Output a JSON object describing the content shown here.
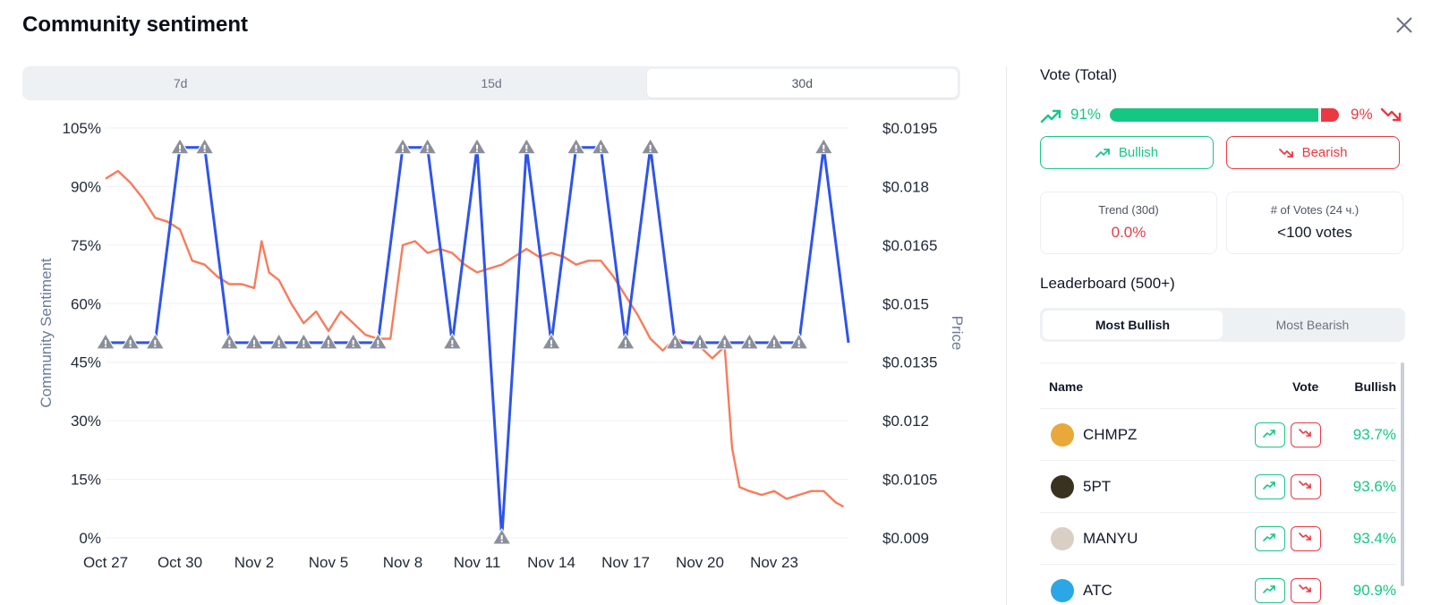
{
  "modal": {
    "title": "Community sentiment"
  },
  "range_tabs": [
    {
      "label": "7d",
      "active": false
    },
    {
      "label": "15d",
      "active": false
    },
    {
      "label": "30d",
      "active": true
    }
  ],
  "chart_data": {
    "type": "line",
    "ylabel": "Community Sentiment",
    "y2label": "Price",
    "x_ticks": [
      "Oct 27",
      "Oct 30",
      "Nov 2",
      "Nov 5",
      "Nov 8",
      "Nov 11",
      "Nov 14",
      "Nov 17",
      "Nov 20",
      "Nov 23"
    ],
    "y_ticks": [
      "105%",
      "90%",
      "75%",
      "60%",
      "45%",
      "30%",
      "15%",
      "0%"
    ],
    "y2_ticks": [
      "$0.0195",
      "$0.018",
      "$0.0165",
      "$0.015",
      "$0.0135",
      "$0.012",
      "$0.0105",
      "$0.009"
    ],
    "ylim": [
      0,
      105
    ],
    "y2lim": [
      0.009,
      0.0195
    ],
    "series": [
      {
        "kind": "sentiment",
        "color": "#2f54eb",
        "x_day": [
          0,
          1,
          2,
          3,
          4,
          5,
          6,
          7,
          8,
          9,
          10,
          11,
          12,
          13,
          14,
          15,
          16,
          17,
          18,
          19,
          20,
          21,
          22,
          23,
          24,
          25,
          26,
          27,
          28,
          29,
          30
        ],
        "values": [
          50,
          50,
          50,
          100,
          100,
          50,
          50,
          50,
          50,
          50,
          50,
          50,
          100,
          100,
          50,
          100,
          0,
          100,
          50,
          100,
          100,
          50,
          100,
          50,
          50,
          50,
          50,
          50,
          50,
          100,
          50
        ]
      },
      {
        "kind": "price",
        "color": "#f77c5c",
        "x_day": [
          0,
          0.5,
          1,
          1.5,
          2,
          2.5,
          3,
          3.5,
          4,
          4.5,
          5,
          5.5,
          6,
          6.3,
          6.6,
          7,
          7.5,
          8,
          8.5,
          9,
          9.5,
          10,
          10.5,
          11,
          11.5,
          12,
          12.5,
          13,
          13.5,
          14,
          14.5,
          15,
          15.5,
          16,
          16.5,
          17,
          17.5,
          18,
          18.5,
          19,
          19.5,
          20,
          20.5,
          21,
          21.5,
          22,
          22.5,
          23,
          23.5,
          24,
          24.5,
          25,
          25.3,
          25.6,
          26,
          26.5,
          27,
          27.5,
          28,
          28.5,
          29,
          29.5,
          29.8
        ],
        "values": [
          0.0182,
          0.0184,
          0.0181,
          0.0177,
          0.0172,
          0.0171,
          0.0169,
          0.0161,
          0.016,
          0.0157,
          0.0155,
          0.0155,
          0.0154,
          0.0166,
          0.0158,
          0.0156,
          0.015,
          0.0145,
          0.0148,
          0.0143,
          0.0148,
          0.0145,
          0.0142,
          0.0141,
          0.0141,
          0.0165,
          0.0166,
          0.0163,
          0.0164,
          0.0163,
          0.016,
          0.0158,
          0.0159,
          0.016,
          0.0162,
          0.0164,
          0.0162,
          0.0163,
          0.0162,
          0.016,
          0.0161,
          0.0161,
          0.0157,
          0.0152,
          0.0147,
          0.0141,
          0.0138,
          0.0141,
          0.014,
          0.0139,
          0.0136,
          0.0139,
          0.0113,
          0.0103,
          0.0102,
          0.0101,
          0.0102,
          0.01,
          0.0101,
          0.0102,
          0.0102,
          0.0099,
          0.0098
        ]
      }
    ]
  },
  "vote_total": {
    "title": "Vote (Total)",
    "bullish_pct": "91%",
    "bearish_pct": "9%",
    "bullish_fraction": 0.91,
    "bullish_label": "Bullish",
    "bearish_label": "Bearish"
  },
  "stats": [
    {
      "label": "Trend (30d)",
      "value": "0.0%",
      "color": "#ea3943"
    },
    {
      "label": "# of Votes (24 ч.)",
      "value": "<100 votes",
      "color": "#111827"
    }
  ],
  "leaderboard": {
    "title": "Leaderboard (500+)",
    "tabs": [
      {
        "label": "Most Bullish",
        "active": true
      },
      {
        "label": "Most Bearish",
        "active": false
      }
    ],
    "columns": {
      "name": "Name",
      "vote": "Vote",
      "bullish": "Bullish"
    },
    "rows": [
      {
        "name": "CHMPZ",
        "bullish": "93.7%",
        "logo_color": "#e8a93a"
      },
      {
        "name": "5PT",
        "bullish": "93.6%",
        "logo_color": "#3a3220"
      },
      {
        "name": "MANYU",
        "bullish": "93.4%",
        "logo_color": "#d9cfc4"
      },
      {
        "name": "ATC",
        "bullish": "90.9%",
        "logo_color": "#2ba7e6"
      }
    ]
  },
  "colors": {
    "green": "#16c784",
    "red": "#ea3943",
    "blue": "#2f54eb",
    "orange": "#f77c5c"
  }
}
